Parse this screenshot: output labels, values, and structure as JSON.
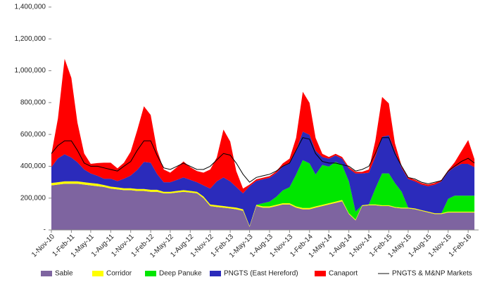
{
  "chart_data": {
    "type": "stacked-area",
    "x": [
      "2010-11-01",
      "2010-12-01",
      "2011-01-01",
      "2011-02-01",
      "2011-03-01",
      "2011-04-01",
      "2011-05-01",
      "2011-06-01",
      "2011-07-01",
      "2011-08-01",
      "2011-09-01",
      "2011-10-01",
      "2011-11-01",
      "2011-12-01",
      "2012-01-01",
      "2012-02-01",
      "2012-03-01",
      "2012-04-01",
      "2012-05-01",
      "2012-06-01",
      "2012-07-01",
      "2012-08-01",
      "2012-09-01",
      "2012-10-01",
      "2012-11-01",
      "2012-12-01",
      "2013-01-01",
      "2013-02-01",
      "2013-03-01",
      "2013-04-01",
      "2013-05-01",
      "2013-06-01",
      "2013-07-01",
      "2013-08-01",
      "2013-09-01",
      "2013-10-01",
      "2013-11-01",
      "2013-12-01",
      "2014-01-01",
      "2014-02-01",
      "2014-03-01",
      "2014-04-01",
      "2014-05-01",
      "2014-06-01",
      "2014-07-01",
      "2014-08-01",
      "2014-09-01",
      "2014-10-01",
      "2014-11-01",
      "2014-12-01",
      "2015-01-01",
      "2015-02-01",
      "2015-03-01",
      "2015-04-01",
      "2015-05-01",
      "2015-06-01",
      "2015-07-01",
      "2015-08-01",
      "2015-09-01",
      "2015-10-01",
      "2015-11-01",
      "2015-12-01",
      "2016-01-01",
      "2016-02-01",
      "2016-03-01"
    ],
    "xlim": [
      "2010-11-01",
      "2016-03-20"
    ],
    "xticks": [
      {
        "value": "2010-11-01",
        "label": "1-Nov-10"
      },
      {
        "value": "2011-02-01",
        "label": "1-Feb-11"
      },
      {
        "value": "2011-05-01",
        "label": "1-May-11"
      },
      {
        "value": "2011-08-01",
        "label": "1-Aug-11"
      },
      {
        "value": "2011-11-01",
        "label": "1-Nov-11"
      },
      {
        "value": "2012-02-01",
        "label": "1-Feb-12"
      },
      {
        "value": "2012-05-01",
        "label": "1-May-12"
      },
      {
        "value": "2012-08-01",
        "label": "1-Aug-12"
      },
      {
        "value": "2012-11-01",
        "label": "1-Nov-12"
      },
      {
        "value": "2013-02-01",
        "label": "1-Feb-13"
      },
      {
        "value": "2013-05-01",
        "label": "1-May-13"
      },
      {
        "value": "2013-08-01",
        "label": "1-Aug-13"
      },
      {
        "value": "2013-11-01",
        "label": "1-Nov-13"
      },
      {
        "value": "2014-02-01",
        "label": "1-Feb-14"
      },
      {
        "value": "2014-05-01",
        "label": "1-May-14"
      },
      {
        "value": "2014-08-01",
        "label": "1-Aug-14"
      },
      {
        "value": "2014-11-01",
        "label": "1-Nov-14"
      },
      {
        "value": "2015-02-01",
        "label": "1-Feb-15"
      },
      {
        "value": "2015-05-01",
        "label": "1-May-15"
      },
      {
        "value": "2015-08-01",
        "label": "1-Aug-15"
      },
      {
        "value": "2015-11-01",
        "label": "1-Nov-15"
      },
      {
        "value": "2016-02-01",
        "label": "1-Feb-16"
      }
    ],
    "ylim": [
      0,
      1400000
    ],
    "yticks": [
      {
        "value": 0,
        "label": "-"
      },
      {
        "value": 200000,
        "label": "200,000"
      },
      {
        "value": 400000,
        "label": "400,000"
      },
      {
        "value": 600000,
        "label": "600,000"
      },
      {
        "value": 800000,
        "label": "800,000"
      },
      {
        "value": 1000000,
        "label": "1,000,000"
      },
      {
        "value": 1200000,
        "label": "1,200,000"
      },
      {
        "value": 1400000,
        "label": "1,400,000"
      }
    ],
    "grid": false,
    "legend": "bottom",
    "series": [
      {
        "name": "Sable",
        "color": "#7e64a0",
        "kind": "area",
        "values": [
          280000,
          285000,
          290000,
          290000,
          290000,
          285000,
          280000,
          275000,
          270000,
          260000,
          255000,
          250000,
          250000,
          245000,
          245000,
          240000,
          240000,
          230000,
          230000,
          235000,
          240000,
          235000,
          230000,
          200000,
          150000,
          145000,
          140000,
          135000,
          130000,
          120000,
          20000,
          150000,
          140000,
          140000,
          150000,
          160000,
          160000,
          140000,
          130000,
          130000,
          140000,
          150000,
          160000,
          170000,
          180000,
          100000,
          60000,
          150000,
          155000,
          155000,
          150000,
          150000,
          140000,
          135000,
          135000,
          130000,
          120000,
          110000,
          100000,
          100000,
          110000,
          110000,
          110000,
          110000,
          110000
        ]
      },
      {
        "name": "Corridor",
        "color": "#ffff00",
        "kind": "area",
        "values": [
          15000,
          15000,
          15000,
          15000,
          15000,
          15000,
          15000,
          15000,
          12000,
          12000,
          12000,
          12000,
          12000,
          12000,
          12000,
          12000,
          12000,
          10000,
          10000,
          10000,
          10000,
          10000,
          10000,
          10000,
          10000,
          10000,
          10000,
          10000,
          10000,
          10000,
          5000,
          8000,
          8000,
          8000,
          8000,
          8000,
          8000,
          8000,
          8000,
          8000,
          8000,
          8000,
          8000,
          8000,
          8000,
          5000,
          5000,
          5000,
          5000,
          5000,
          5000,
          5000,
          5000,
          5000,
          5000,
          5000,
          5000,
          5000,
          5000,
          5000,
          5000,
          5000,
          5000,
          5000,
          5000
        ]
      },
      {
        "name": "Deep Panuke",
        "color": "#00e600",
        "kind": "area",
        "values": [
          0,
          0,
          0,
          0,
          0,
          0,
          0,
          0,
          0,
          0,
          0,
          0,
          0,
          0,
          0,
          0,
          0,
          0,
          0,
          0,
          0,
          0,
          0,
          0,
          0,
          0,
          0,
          0,
          0,
          0,
          0,
          0,
          20000,
          30000,
          50000,
          80000,
          100000,
          200000,
          300000,
          280000,
          200000,
          250000,
          230000,
          250000,
          220000,
          200000,
          50000,
          0,
          0,
          100000,
          200000,
          200000,
          150000,
          100000,
          0,
          0,
          0,
          0,
          0,
          0,
          80000,
          100000,
          100000,
          100000,
          100000
        ]
      },
      {
        "name": "PNGTS (East Hereford)",
        "color": "#2b2bbb",
        "kind": "area",
        "values": [
          100000,
          150000,
          170000,
          150000,
          120000,
          80000,
          60000,
          50000,
          40000,
          50000,
          40000,
          60000,
          80000,
          120000,
          170000,
          170000,
          100000,
          60000,
          60000,
          70000,
          80000,
          70000,
          60000,
          70000,
          100000,
          150000,
          180000,
          160000,
          130000,
          100000,
          250000,
          150000,
          150000,
          150000,
          150000,
          150000,
          150000,
          150000,
          180000,
          180000,
          150000,
          50000,
          50000,
          40000,
          40000,
          80000,
          240000,
          200000,
          200000,
          200000,
          230000,
          240000,
          200000,
          150000,
          180000,
          170000,
          160000,
          160000,
          180000,
          200000,
          170000,
          180000,
          200000,
          200000,
          180000
        ]
      },
      {
        "name": "Canaport",
        "color": "#ff0000",
        "kind": "area",
        "values": [
          80000,
          250000,
          600000,
          500000,
          250000,
          100000,
          60000,
          80000,
          100000,
          100000,
          80000,
          100000,
          150000,
          250000,
          350000,
          300000,
          150000,
          80000,
          60000,
          80000,
          100000,
          80000,
          70000,
          80000,
          120000,
          150000,
          300000,
          250000,
          100000,
          30000,
          10000,
          10000,
          10000,
          10000,
          10000,
          20000,
          30000,
          80000,
          250000,
          200000,
          80000,
          20000,
          10000,
          10000,
          10000,
          10000,
          10000,
          10000,
          20000,
          100000,
          250000,
          200000,
          50000,
          10000,
          10000,
          10000,
          10000,
          10000,
          10000,
          10000,
          10000,
          30000,
          80000,
          150000,
          50000
        ]
      },
      {
        "name": "PNGTS & M&NP Markets",
        "color": "#000000",
        "kind": "line",
        "values": [
          480000,
          530000,
          560000,
          560000,
          500000,
          420000,
          400000,
          400000,
          390000,
          380000,
          370000,
          400000,
          430000,
          500000,
          560000,
          560000,
          470000,
          390000,
          380000,
          400000,
          420000,
          400000,
          380000,
          380000,
          400000,
          440000,
          480000,
          470000,
          420000,
          350000,
          300000,
          330000,
          340000,
          350000,
          370000,
          400000,
          420000,
          500000,
          580000,
          570000,
          480000,
          430000,
          420000,
          420000,
          410000,
          400000,
          370000,
          380000,
          400000,
          480000,
          580000,
          580000,
          480000,
          400000,
          330000,
          320000,
          300000,
          290000,
          300000,
          310000,
          370000,
          400000,
          430000,
          450000,
          420000
        ]
      }
    ]
  }
}
